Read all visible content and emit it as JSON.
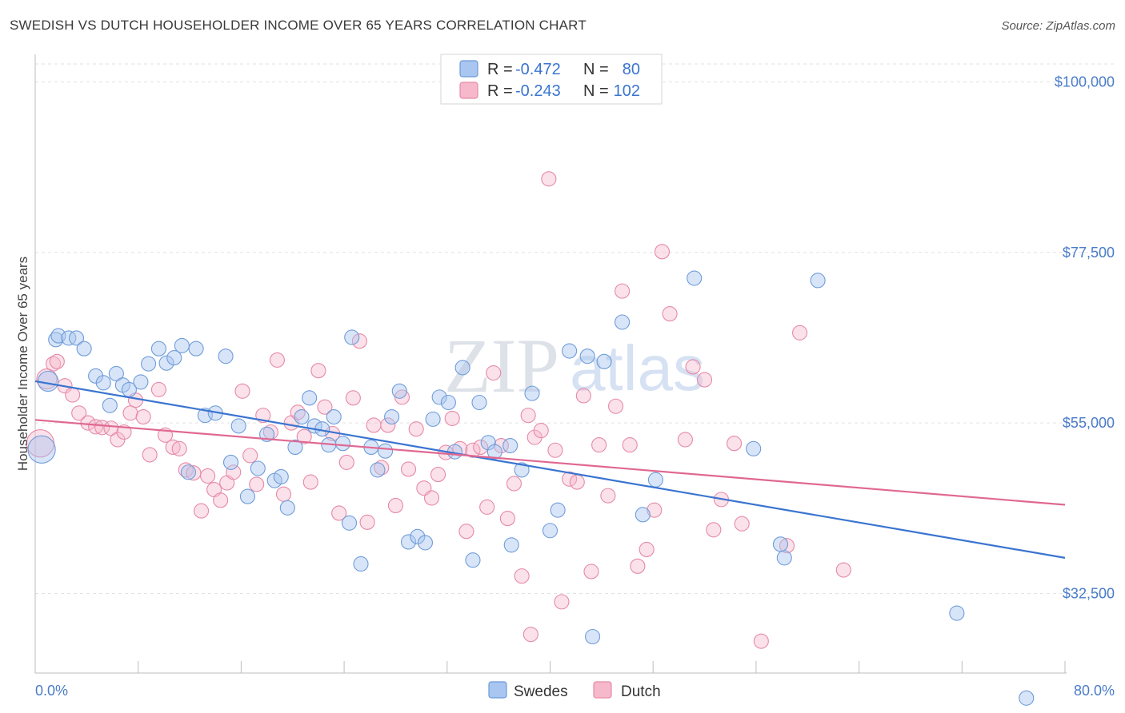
{
  "header": {
    "title": "SWEDISH VS DUTCH HOUSEHOLDER INCOME OVER 65 YEARS CORRELATION CHART",
    "source": "Source: ZipAtlas.com"
  },
  "watermark": {
    "zip": "ZIP",
    "atlas": "atlas"
  },
  "legend": {
    "rows": [
      {
        "r_label": "R =",
        "r_value": "-0.472",
        "n_label": "N =",
        "n_value": "80",
        "color": "#a9c6f0",
        "stroke": "#6b9ad8"
      },
      {
        "r_label": "R =",
        "r_value": "-0.243",
        "n_label": "N =",
        "n_value": "102",
        "color": "#f6b8cb",
        "stroke": "#e68aa7"
      }
    ]
  },
  "bottom_legend": {
    "items": [
      {
        "label": "Swedes",
        "color": "#a9c6f0",
        "stroke": "#6b9ad8"
      },
      {
        "label": "Dutch",
        "color": "#f6b8cb",
        "stroke": "#e68aa7"
      }
    ]
  },
  "chart_data": {
    "type": "scatter",
    "title": "SWEDISH VS DUTCH HOUSEHOLDER INCOME OVER 65 YEARS CORRELATION CHART",
    "xlabel": "",
    "ylabel": "Householder Income Over 65 years",
    "xlim": [
      0,
      80
    ],
    "ylim": [
      22000,
      103000
    ],
    "x_tick_labels": {
      "min": "0.0%",
      "max": "80.0%"
    },
    "y_ticks": [
      {
        "value": 100000,
        "label": "$100,000"
      },
      {
        "value": 77500,
        "label": "$77,500"
      },
      {
        "value": 55000,
        "label": "$55,000"
      },
      {
        "value": 32500,
        "label": "$32,500"
      }
    ],
    "colors": {
      "swedes": "#3a74d0",
      "dutch": "#e06892"
    },
    "series": [
      {
        "name": "Swedes",
        "trend": {
          "x": [
            0,
            80
          ],
          "y": [
            60500,
            37200
          ]
        },
        "points": [
          [
            0.5,
            51500,
            1.9
          ],
          [
            1.0,
            60500,
            1.4
          ],
          [
            1.6,
            66000,
            1
          ],
          [
            1.8,
            66500,
            1
          ],
          [
            2.6,
            66200,
            1
          ],
          [
            3.2,
            66200,
            1
          ],
          [
            3.8,
            64800,
            1
          ],
          [
            4.7,
            61200,
            1
          ],
          [
            5.3,
            60300,
            1
          ],
          [
            5.8,
            57300,
            1
          ],
          [
            6.3,
            61500,
            1
          ],
          [
            6.8,
            60000,
            1
          ],
          [
            7.3,
            59400,
            1
          ],
          [
            8.2,
            60400,
            1
          ],
          [
            8.8,
            62800,
            1
          ],
          [
            9.6,
            64800,
            1
          ],
          [
            10.2,
            62900,
            1
          ],
          [
            10.8,
            63600,
            1
          ],
          [
            11.4,
            65200,
            1
          ],
          [
            11.9,
            48500,
            1
          ],
          [
            12.5,
            64800,
            1
          ],
          [
            13.2,
            56000,
            1
          ],
          [
            14.0,
            56300,
            1
          ],
          [
            14.8,
            63800,
            1
          ],
          [
            15.2,
            49800,
            1
          ],
          [
            15.8,
            54600,
            1
          ],
          [
            16.5,
            45300,
            1
          ],
          [
            17.3,
            49000,
            1
          ],
          [
            18.0,
            53500,
            1
          ],
          [
            18.6,
            47400,
            1
          ],
          [
            19.1,
            47900,
            1
          ],
          [
            19.6,
            43800,
            1
          ],
          [
            20.2,
            51800,
            1
          ],
          [
            20.7,
            55800,
            1
          ],
          [
            21.3,
            58300,
            1
          ],
          [
            21.7,
            54600,
            1
          ],
          [
            22.3,
            54200,
            1
          ],
          [
            22.8,
            52100,
            1
          ],
          [
            23.2,
            55800,
            1
          ],
          [
            23.9,
            52300,
            1
          ],
          [
            24.4,
            41800,
            1
          ],
          [
            24.6,
            66300,
            1
          ],
          [
            25.3,
            36400,
            1
          ],
          [
            26.1,
            51800,
            1
          ],
          [
            26.6,
            48800,
            1
          ],
          [
            27.2,
            51300,
            1
          ],
          [
            27.7,
            55800,
            1
          ],
          [
            28.3,
            59200,
            1
          ],
          [
            29.0,
            39300,
            1
          ],
          [
            29.7,
            40000,
            1
          ],
          [
            30.3,
            39200,
            1
          ],
          [
            30.9,
            55500,
            1
          ],
          [
            31.4,
            58400,
            1
          ],
          [
            32.1,
            57700,
            1
          ],
          [
            32.6,
            51200,
            1
          ],
          [
            33.2,
            62300,
            1
          ],
          [
            34.0,
            36900,
            1
          ],
          [
            34.5,
            57700,
            1
          ],
          [
            35.2,
            52400,
            1
          ],
          [
            35.7,
            51200,
            1
          ],
          [
            37.0,
            38900,
            1
          ],
          [
            37.8,
            48800,
            1
          ],
          [
            38.6,
            58900,
            1
          ],
          [
            40.0,
            40800,
            1
          ],
          [
            40.6,
            43500,
            1
          ],
          [
            41.5,
            64500,
            1
          ],
          [
            42.9,
            63800,
            1
          ],
          [
            43.3,
            26800,
            1
          ],
          [
            44.2,
            63100,
            1
          ],
          [
            45.6,
            68300,
            1
          ],
          [
            47.2,
            42900,
            1
          ],
          [
            51.2,
            74100,
            1
          ],
          [
            55.8,
            51600,
            1
          ],
          [
            57.9,
            39000,
            1
          ],
          [
            58.2,
            37200,
            1
          ],
          [
            60.8,
            73800,
            1
          ],
          [
            71.6,
            29900,
            1
          ],
          [
            77.0,
            18700,
            1
          ],
          [
            36.9,
            52000,
            1
          ],
          [
            48.2,
            47500,
            1
          ]
        ]
      },
      {
        "name": "Dutch",
        "trend": {
          "x": [
            0,
            80
          ],
          "y": [
            55400,
            44200
          ]
        },
        "points": [
          [
            0.4,
            52300,
            1.9
          ],
          [
            0.9,
            60800,
            1.4
          ],
          [
            1.4,
            62800,
            1
          ],
          [
            1.7,
            63100,
            1
          ],
          [
            2.3,
            59900,
            1
          ],
          [
            2.9,
            58700,
            1
          ],
          [
            3.4,
            56300,
            1
          ],
          [
            4.1,
            55000,
            1
          ],
          [
            4.7,
            54500,
            1
          ],
          [
            5.2,
            54400,
            1
          ],
          [
            5.9,
            54300,
            1
          ],
          [
            6.4,
            52800,
            1
          ],
          [
            6.9,
            53800,
            1
          ],
          [
            7.4,
            56300,
            1
          ],
          [
            7.8,
            58000,
            1
          ],
          [
            8.4,
            55800,
            1
          ],
          [
            8.9,
            50800,
            1
          ],
          [
            9.6,
            59400,
            1
          ],
          [
            10.1,
            53400,
            1
          ],
          [
            10.7,
            51800,
            1
          ],
          [
            11.2,
            51600,
            1
          ],
          [
            11.7,
            48800,
            1
          ],
          [
            12.3,
            48400,
            1
          ],
          [
            12.9,
            43400,
            1
          ],
          [
            13.4,
            48000,
            1
          ],
          [
            13.9,
            46200,
            1
          ],
          [
            14.4,
            44800,
            1
          ],
          [
            14.9,
            47100,
            1
          ],
          [
            15.4,
            48500,
            1
          ],
          [
            16.1,
            59200,
            1
          ],
          [
            16.7,
            50700,
            1
          ],
          [
            17.2,
            46900,
            1
          ],
          [
            17.7,
            56000,
            1
          ],
          [
            18.3,
            53800,
            1
          ],
          [
            18.8,
            63300,
            1
          ],
          [
            19.3,
            45600,
            1
          ],
          [
            19.9,
            55000,
            1
          ],
          [
            20.4,
            56400,
            1
          ],
          [
            20.9,
            53200,
            1
          ],
          [
            21.4,
            47200,
            1
          ],
          [
            22.0,
            61900,
            1
          ],
          [
            22.5,
            57100,
            1
          ],
          [
            23.1,
            53600,
            1
          ],
          [
            23.6,
            43100,
            1
          ],
          [
            24.2,
            49800,
            1
          ],
          [
            24.7,
            58300,
            1
          ],
          [
            25.2,
            65800,
            1
          ],
          [
            25.8,
            41900,
            1
          ],
          [
            26.3,
            54700,
            1
          ],
          [
            26.9,
            49100,
            1
          ],
          [
            27.4,
            54700,
            1
          ],
          [
            28.0,
            44100,
            1
          ],
          [
            28.5,
            58400,
            1
          ],
          [
            29.0,
            48900,
            1
          ],
          [
            29.6,
            54200,
            1
          ],
          [
            30.2,
            46400,
            1
          ],
          [
            30.8,
            45100,
            1
          ],
          [
            31.3,
            48200,
            1
          ],
          [
            31.9,
            51100,
            1
          ],
          [
            32.4,
            55600,
            1
          ],
          [
            33.0,
            51600,
            1
          ],
          [
            33.5,
            40700,
            1
          ],
          [
            34.0,
            51400,
            1
          ],
          [
            34.6,
            51800,
            1
          ],
          [
            35.1,
            43900,
            1
          ],
          [
            35.6,
            61600,
            1
          ],
          [
            36.2,
            52000,
            1
          ],
          [
            36.7,
            42400,
            1
          ],
          [
            37.2,
            47000,
            1
          ],
          [
            37.8,
            34800,
            1
          ],
          [
            38.3,
            56000,
            1
          ],
          [
            38.8,
            53100,
            1
          ],
          [
            39.3,
            54000,
            1
          ],
          [
            39.9,
            87200,
            1
          ],
          [
            40.4,
            51400,
            1
          ],
          [
            40.9,
            31400,
            1
          ],
          [
            41.5,
            47600,
            1
          ],
          [
            42.1,
            47200,
            1
          ],
          [
            42.6,
            58600,
            1
          ],
          [
            43.2,
            35400,
            1
          ],
          [
            43.8,
            52100,
            1
          ],
          [
            44.5,
            45400,
            1
          ],
          [
            45.1,
            57200,
            1
          ],
          [
            45.6,
            72400,
            1
          ],
          [
            46.2,
            52100,
            1
          ],
          [
            46.8,
            36100,
            1
          ],
          [
            47.5,
            38300,
            1
          ],
          [
            48.1,
            43500,
            1
          ],
          [
            48.7,
            77600,
            1
          ],
          [
            49.3,
            69400,
            1
          ],
          [
            50.5,
            52800,
            1
          ],
          [
            51.1,
            62400,
            1
          ],
          [
            52.0,
            60700,
            1
          ],
          [
            52.7,
            40900,
            1
          ],
          [
            53.3,
            44900,
            1
          ],
          [
            54.3,
            52300,
            1
          ],
          [
            54.9,
            41700,
            1
          ],
          [
            56.4,
            26200,
            1
          ],
          [
            58.4,
            38800,
            1
          ],
          [
            59.4,
            66900,
            1
          ],
          [
            62.8,
            35600,
            1
          ],
          [
            38.5,
            27100,
            1
          ]
        ]
      }
    ]
  }
}
